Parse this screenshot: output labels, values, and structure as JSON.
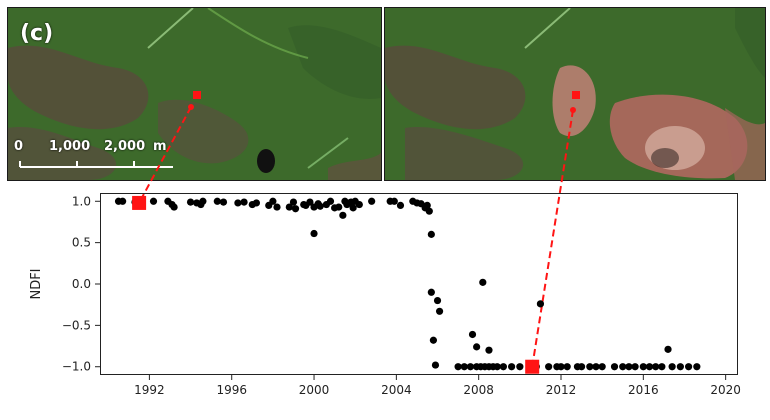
{
  "figure": {
    "panel_label": "(c)",
    "scale_bar": {
      "labels": [
        "0",
        "1,000",
        "2,000"
      ],
      "unit": "m"
    },
    "colors": {
      "marker": "#ff1414",
      "points": "#000000",
      "vegetation": "#3f6b2c",
      "disturbance": "#b56c63"
    }
  },
  "chart_data": {
    "type": "scatter",
    "title": "",
    "xlabel": "",
    "ylabel": "NDFI",
    "xlim": [
      1989.6,
      2020.6
    ],
    "ylim": [
      -1.1,
      1.1
    ],
    "xticks": [
      1992,
      1996,
      2000,
      2004,
      2008,
      2012,
      2016,
      2020
    ],
    "yticks": [
      1.0,
      0.5,
      0.0,
      -0.5,
      -1.0
    ],
    "ytick_labels": [
      "1.0",
      "0.5",
      "0.0",
      "−0.5",
      "−1.0"
    ],
    "grid": false,
    "series": [
      {
        "points": [
          [
            1990.5,
            1.0
          ],
          [
            1990.7,
            1.0
          ],
          [
            1991.3,
            0.99
          ],
          [
            1991.6,
            0.99
          ],
          [
            1992.2,
            1.0
          ],
          [
            1992.9,
            1.0
          ],
          [
            1993.1,
            0.96
          ],
          [
            1993.2,
            0.93
          ],
          [
            1994.0,
            0.99
          ],
          [
            1994.3,
            0.98
          ],
          [
            1994.5,
            0.96
          ],
          [
            1994.6,
            1.0
          ],
          [
            1995.3,
            1.0
          ],
          [
            1995.6,
            0.99
          ],
          [
            1996.3,
            0.98
          ],
          [
            1996.6,
            0.99
          ],
          [
            1997.0,
            0.96
          ],
          [
            1997.2,
            0.98
          ],
          [
            1997.8,
            0.95
          ],
          [
            1998.0,
            1.0
          ],
          [
            1998.2,
            0.93
          ],
          [
            1998.8,
            0.93
          ],
          [
            1999.0,
            0.99
          ],
          [
            1999.1,
            0.91
          ],
          [
            1999.5,
            0.96
          ],
          [
            1999.6,
            0.95
          ],
          [
            1999.8,
            0.99
          ],
          [
            2000.0,
            0.93
          ],
          [
            2000.2,
            0.97
          ],
          [
            2000.0,
            0.61
          ],
          [
            2000.3,
            0.94
          ],
          [
            2000.6,
            0.96
          ],
          [
            2000.8,
            1.0
          ],
          [
            2001.0,
            0.92
          ],
          [
            2001.2,
            0.93
          ],
          [
            2001.4,
            0.83
          ],
          [
            2001.5,
            1.0
          ],
          [
            2001.6,
            0.96
          ],
          [
            2001.7,
            0.98
          ],
          [
            2001.8,
            0.99
          ],
          [
            2001.9,
            0.92
          ],
          [
            2002.0,
            1.0
          ],
          [
            2002.2,
            0.96
          ],
          [
            2002.8,
            1.0
          ],
          [
            2003.7,
            1.0
          ],
          [
            2003.9,
            1.0
          ],
          [
            2004.2,
            0.95
          ],
          [
            2004.8,
            1.0
          ],
          [
            2005.0,
            0.98
          ],
          [
            2005.2,
            0.97
          ],
          [
            2005.4,
            0.92
          ],
          [
            2005.5,
            0.95
          ],
          [
            2005.6,
            0.88
          ],
          [
            2005.7,
            0.6
          ],
          [
            2005.7,
            -0.1
          ],
          [
            2005.8,
            -0.68
          ],
          [
            2005.9,
            -0.98
          ],
          [
            2006.0,
            -0.2
          ],
          [
            2006.1,
            -0.33
          ],
          [
            2007.0,
            -1.0
          ],
          [
            2007.3,
            -1.0
          ],
          [
            2007.6,
            -1.0
          ],
          [
            2007.9,
            -1.0
          ],
          [
            2008.1,
            -1.0
          ],
          [
            2008.3,
            -1.0
          ],
          [
            2008.5,
            -1.0
          ],
          [
            2008.7,
            -1.0
          ],
          [
            2008.9,
            -1.0
          ],
          [
            2009.2,
            -1.0
          ],
          [
            2009.6,
            -1.0
          ],
          [
            2010.0,
            -1.0
          ],
          [
            2010.6,
            -1.0
          ],
          [
            2010.8,
            -1.0
          ],
          [
            2007.7,
            -0.61
          ],
          [
            2007.9,
            -0.76
          ],
          [
            2008.2,
            0.02
          ],
          [
            2008.5,
            -0.8
          ],
          [
            2011.0,
            -0.24
          ],
          [
            2011.4,
            -1.0
          ],
          [
            2011.8,
            -1.0
          ],
          [
            2012.0,
            -1.0
          ],
          [
            2012.3,
            -1.0
          ],
          [
            2012.8,
            -1.0
          ],
          [
            2013.0,
            -1.0
          ],
          [
            2013.4,
            -1.0
          ],
          [
            2013.7,
            -1.0
          ],
          [
            2014.0,
            -1.0
          ],
          [
            2014.6,
            -1.0
          ],
          [
            2015.0,
            -1.0
          ],
          [
            2015.3,
            -1.0
          ],
          [
            2015.6,
            -1.0
          ],
          [
            2016.0,
            -1.0
          ],
          [
            2016.3,
            -1.0
          ],
          [
            2016.6,
            -1.0
          ],
          [
            2016.9,
            -1.0
          ],
          [
            2017.2,
            -0.79
          ],
          [
            2017.4,
            -1.0
          ],
          [
            2017.8,
            -1.0
          ],
          [
            2018.2,
            -1.0
          ],
          [
            2018.6,
            -1.0
          ]
        ]
      }
    ],
    "highlighted_points": [
      {
        "x": 1991.5,
        "y": 0.98
      },
      {
        "x": 2010.6,
        "y": -1.0
      }
    ]
  }
}
